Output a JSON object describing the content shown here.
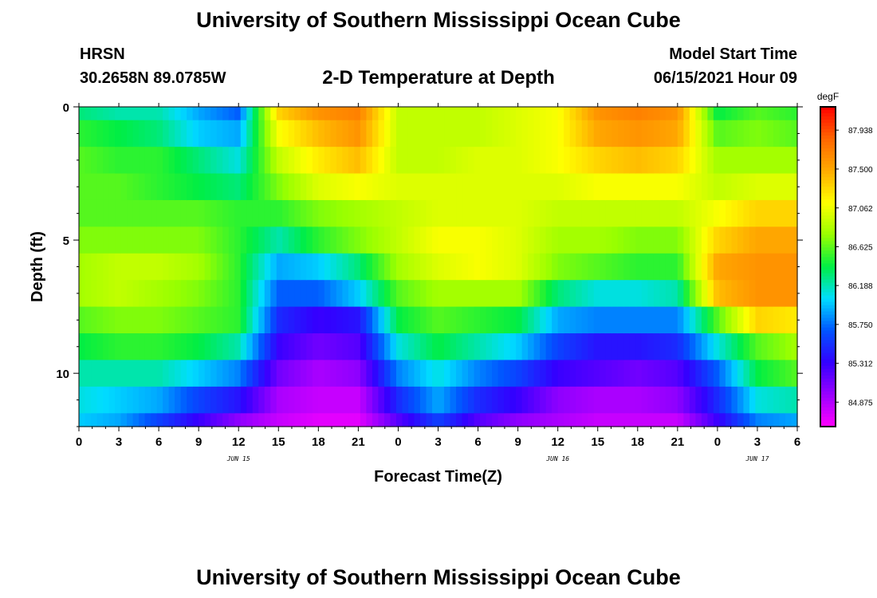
{
  "header": {
    "title": "University of Southern Mississippi Ocean Cube",
    "station": "HRSN",
    "coordinates": "30.2658N  89.0785W",
    "plot_title": "2-D Temperature at Depth",
    "model_start_label": "Model Start Time",
    "model_start_value": "06/15/2021 Hour 09"
  },
  "footer": {
    "title": "University of Southern Mississippi Ocean Cube"
  },
  "chart_data": {
    "type": "heatmap",
    "title": "2-D Temperature at Depth",
    "xlabel": "Forecast Time(Z)",
    "ylabel": "Depth (ft)",
    "x_tick_labels": [
      "0",
      "3",
      "6",
      "9",
      "12",
      "15",
      "18",
      "21",
      "0",
      "3",
      "6",
      "9",
      "12",
      "15",
      "18",
      "21",
      "0",
      "3",
      "6"
    ],
    "x_range_hours": [
      0,
      54
    ],
    "date_labels": [
      {
        "label": "JUN 15",
        "hour": 12
      },
      {
        "label": "JUN 16",
        "hour": 36
      },
      {
        "label": "JUN 17",
        "hour": 51
      }
    ],
    "y_tick_labels": [
      "0",
      "5",
      "10"
    ],
    "y_range_ft": [
      0,
      12
    ],
    "y_inverted": true,
    "depth_levels_ft": [
      0,
      1,
      2,
      3,
      4,
      5,
      6,
      7,
      8,
      9,
      10,
      11,
      12
    ],
    "colorbar": {
      "unit": "degF",
      "range": [
        84.6,
        88.2
      ],
      "labels": [
        "87.938",
        "87.500",
        "87.062",
        "86.625",
        "86.188",
        "85.750",
        "85.312",
        "84.875"
      ],
      "colors": [
        "#ff00ff",
        "#9900ff",
        "#3300ff",
        "#0055ff",
        "#00ddff",
        "#00ee44",
        "#99ff00",
        "#ffff00",
        "#ffaa00",
        "#ff6600",
        "#ff0000"
      ]
    },
    "profile_hours": [
      0,
      3,
      6,
      9,
      12,
      15,
      18,
      21,
      24,
      27,
      30,
      33,
      36,
      39,
      42,
      45,
      48,
      51,
      54
    ],
    "temperature_profiles": [
      [
        86.3,
        86.5,
        86.6,
        86.6,
        86.6,
        86.7,
        86.8,
        86.8,
        86.6,
        86.4,
        86.2,
        86.1,
        86.0
      ],
      [
        86.2,
        86.4,
        86.5,
        86.6,
        86.6,
        86.7,
        86.9,
        86.9,
        86.7,
        86.5,
        86.2,
        86.0,
        85.9
      ],
      [
        86.2,
        86.3,
        86.5,
        86.5,
        86.6,
        86.7,
        86.9,
        86.8,
        86.7,
        86.5,
        86.2,
        85.9,
        85.6
      ],
      [
        85.9,
        86.0,
        86.3,
        86.4,
        86.6,
        86.7,
        86.8,
        86.7,
        86.6,
        86.4,
        86.0,
        85.6,
        85.3
      ],
      [
        85.7,
        85.9,
        86.1,
        86.3,
        86.5,
        86.5,
        86.5,
        86.5,
        86.5,
        86.2,
        85.8,
        85.4,
        85.0
      ],
      [
        87.3,
        87.1,
        86.9,
        86.7,
        86.5,
        86.2,
        85.9,
        85.7,
        85.5,
        85.3,
        85.1,
        84.9,
        84.8
      ],
      [
        87.6,
        87.4,
        87.2,
        87.0,
        86.7,
        86.5,
        86.0,
        85.7,
        85.3,
        85.1,
        84.9,
        84.8,
        84.7
      ],
      [
        87.7,
        87.6,
        87.4,
        87.1,
        86.8,
        86.7,
        86.3,
        86.0,
        85.4,
        85.2,
        85.0,
        84.8,
        84.7
      ],
      [
        86.9,
        86.9,
        86.9,
        87.0,
        86.9,
        86.9,
        86.8,
        86.6,
        86.4,
        86.1,
        85.8,
        85.5,
        85.2
      ],
      [
        86.9,
        86.9,
        86.9,
        87.0,
        87.0,
        87.1,
        87.0,
        86.8,
        86.6,
        86.4,
        86.1,
        85.9,
        85.6
      ],
      [
        86.9,
        86.9,
        87.0,
        87.0,
        87.0,
        87.1,
        87.1,
        86.8,
        86.5,
        86.2,
        85.8,
        85.5,
        85.2
      ],
      [
        87.0,
        87.0,
        87.0,
        87.0,
        87.0,
        87.0,
        87.0,
        86.8,
        86.4,
        86.0,
        85.6,
        85.3,
        85.0
      ],
      [
        87.1,
        87.1,
        87.1,
        87.0,
        86.9,
        86.8,
        86.7,
        86.3,
        85.9,
        85.6,
        85.3,
        85.0,
        84.9
      ],
      [
        87.6,
        87.5,
        87.3,
        87.1,
        86.9,
        86.8,
        86.6,
        86.1,
        85.8,
        85.4,
        85.2,
        84.9,
        84.8
      ],
      [
        87.7,
        87.6,
        87.4,
        87.1,
        86.9,
        86.7,
        86.5,
        86.1,
        85.8,
        85.4,
        85.1,
        84.9,
        84.8
      ],
      [
        87.6,
        87.5,
        87.3,
        87.1,
        86.9,
        86.7,
        86.5,
        86.2,
        85.8,
        85.5,
        85.2,
        85.0,
        84.8
      ],
      [
        86.4,
        86.6,
        86.8,
        86.9,
        87.1,
        87.3,
        87.5,
        87.4,
        86.6,
        86.1,
        85.7,
        85.5,
        85.3
      ],
      [
        86.6,
        86.7,
        86.8,
        87.0,
        87.3,
        87.5,
        87.6,
        87.6,
        87.3,
        86.6,
        86.4,
        86.1,
        85.8
      ],
      [
        86.5,
        86.6,
        86.8,
        87.0,
        87.3,
        87.5,
        87.6,
        87.6,
        87.2,
        86.8,
        86.6,
        86.2,
        85.9
      ]
    ]
  }
}
